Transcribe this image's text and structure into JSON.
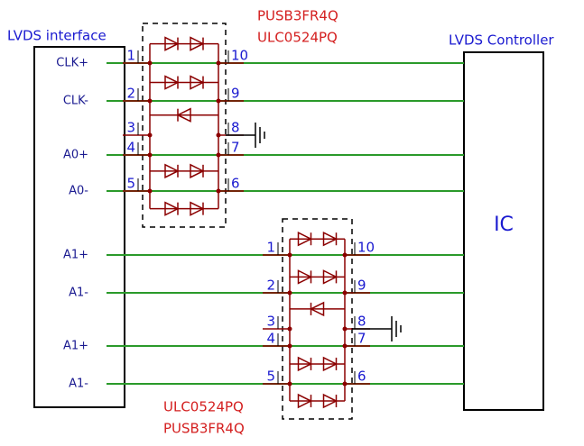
{
  "left_block": {
    "title": "LVDS interface",
    "signals": [
      "CLK+",
      "CLK-",
      "A0+",
      "A0-",
      "A1+",
      "A1-",
      "A1+",
      "A1-"
    ]
  },
  "right_block": {
    "title": "LVDS Controller",
    "label": "IC"
  },
  "chips": [
    {
      "part_numbers": [
        "PUSB3FR4Q",
        "ULC0524PQ"
      ],
      "left_pins": [
        1,
        2,
        3,
        4,
        5
      ],
      "right_pins": [
        10,
        9,
        8,
        7,
        6
      ]
    },
    {
      "part_numbers": [
        "ULC0524PQ",
        "PUSB3FR4Q"
      ],
      "left_pins": [
        1,
        2,
        3,
        4,
        5
      ],
      "right_pins": [
        10,
        9,
        8,
        7,
        6
      ]
    }
  ]
}
